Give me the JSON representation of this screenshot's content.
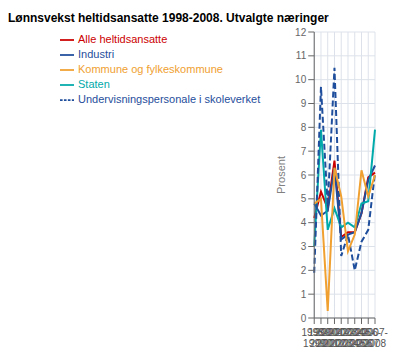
{
  "chart_data": {
    "type": "line",
    "title": "Lønnsvekst heltidsansatte 1998-2008. Utvalgte næringer",
    "ylabel": "Prosent",
    "categories": [
      "1998-\n1999",
      "1999-\n2000",
      "2000-\n2001",
      "2001-\n2002",
      "2002-\n2003",
      "2003-\n2004",
      "2004-\n2005",
      "2005-\n2006",
      "2006-\n2007",
      "2007-\n2008"
    ],
    "series": [
      {
        "name": "Alle heltidsansatte",
        "color": "#cc0000",
        "line_style": "solid",
        "values": [
          4.2,
          5.3,
          4.6,
          6.6,
          3.4,
          3.6,
          3.6,
          4.4,
          5.9,
          6.1
        ]
      },
      {
        "name": "Industri",
        "color": "#1f4e9c",
        "line_style": "solid",
        "values": [
          4.8,
          4.3,
          4.5,
          6.3,
          3.3,
          3.5,
          3.6,
          4.4,
          5.8,
          6.4
        ]
      },
      {
        "name": "Staten",
        "color": "#00aaaa",
        "line_style": "solid",
        "values": [
          3.0,
          7.9,
          3.7,
          4.6,
          3.8,
          4.0,
          3.8,
          4.8,
          4.9,
          7.9
        ]
      },
      {
        "name": "Undervisningspersonale i skoleverket",
        "color": "#1f4e9c",
        "line_style": "dashed",
        "values": [
          1.9,
          9.7,
          4.7,
          10.5,
          2.6,
          3.5,
          2.0,
          3.2,
          3.7,
          6.1
        ]
      },
      {
        "name": "Kommune og fylkeskommune",
        "color": "#f0a030",
        "line_style": "solid",
        "values": [
          4.8,
          5.0,
          0.3,
          6.3,
          5.1,
          2.8,
          3.5,
          6.2,
          5.1,
          6.0
        ]
      }
    ],
    "ylim": [
      0,
      12
    ],
    "yticks": [
      0,
      1,
      2,
      3,
      4,
      5,
      6,
      7,
      8,
      9,
      10,
      11,
      12
    ],
    "grid": true,
    "legend": "top"
  }
}
